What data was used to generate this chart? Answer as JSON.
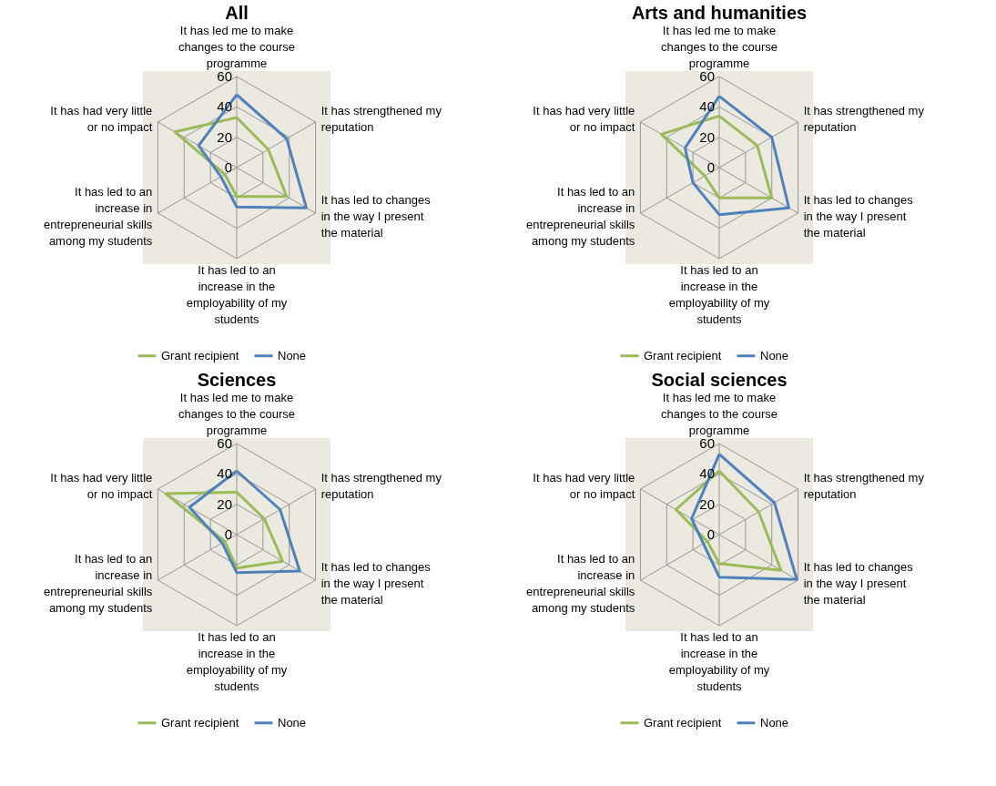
{
  "chart_data": [
    {
      "type": "radar",
      "title": "All",
      "categories": [
        "It has led me to make changes to the course programme",
        "It has strengthened my reputation",
        "It has led to changes in the way I present the material",
        "It has led to an increase in the employability of my students",
        "It has led to an increase in entrepreneurial skills among my students",
        "It has had very little or no impact"
      ],
      "ylim": [
        0,
        60
      ],
      "yticks": [
        0,
        20,
        40,
        60
      ],
      "grid": true,
      "legend": "bottom",
      "series": [
        {
          "name": "Grant recipient",
          "color": "#9bbb59",
          "values": [
            33,
            24,
            38,
            19,
            9,
            47
          ]
        },
        {
          "name": "None",
          "color": "#4f81bd",
          "values": [
            48,
            38,
            53,
            26,
            12,
            29
          ]
        }
      ]
    },
    {
      "type": "radar",
      "title": "Arts and humanities",
      "categories": [
        "It has led me to make changes to the course programme",
        "It has strengthened my reputation",
        "It has led to changes in the way I present the material",
        "It has led to an increase in the employability of my students",
        "It has led to an increase in entrepreneurial skills among my students",
        "It has had very little or no impact"
      ],
      "ylim": [
        0,
        60
      ],
      "yticks": [
        0,
        20,
        40,
        60
      ],
      "grid": true,
      "legend": "bottom",
      "series": [
        {
          "name": "Grant recipient",
          "color": "#9bbb59",
          "values": [
            34,
            29,
            40,
            20,
            11,
            44
          ]
        },
        {
          "name": "None",
          "color": "#4f81bd",
          "values": [
            47,
            40,
            53,
            31,
            20,
            26
          ]
        }
      ]
    },
    {
      "type": "radar",
      "title": "Sciences",
      "categories": [
        "It has led me to make changes to the course programme",
        "It has strengthened my reputation",
        "It has led to changes in the way I present the material",
        "It has led to an increase in the employability of my students",
        "It has led to an increase in entrepreneurial skills among my students",
        "It has had very little or no impact"
      ],
      "ylim": [
        0,
        60
      ],
      "yticks": [
        0,
        20,
        40,
        60
      ],
      "grid": true,
      "legend": "bottom",
      "series": [
        {
          "name": "Grant recipient",
          "color": "#9bbb59",
          "values": [
            28,
            21,
            35,
            22,
            9,
            54
          ]
        },
        {
          "name": "None",
          "color": "#4f81bd",
          "values": [
            42,
            33,
            48,
            25,
            11,
            36
          ]
        }
      ]
    },
    {
      "type": "radar",
      "title": "Social sciences",
      "categories": [
        "It has led me to make changes to the course programme",
        "It has strengthened my reputation",
        "It has led to changes in the way I present the material",
        "It has led to an increase in the employability of my students",
        "It has led to an increase in entrepreneurial skills among my students",
        "It has had very little or no impact"
      ],
      "ylim": [
        0,
        60
      ],
      "yticks": [
        0,
        20,
        40,
        60
      ],
      "grid": true,
      "legend": "bottom",
      "series": [
        {
          "name": "Grant recipient",
          "color": "#9bbb59",
          "values": [
            42,
            30,
            47,
            19,
            9,
            33
          ]
        },
        {
          "name": "None",
          "color": "#4f81bd",
          "values": [
            53,
            42,
            59,
            28,
            12,
            21
          ]
        }
      ]
    }
  ]
}
